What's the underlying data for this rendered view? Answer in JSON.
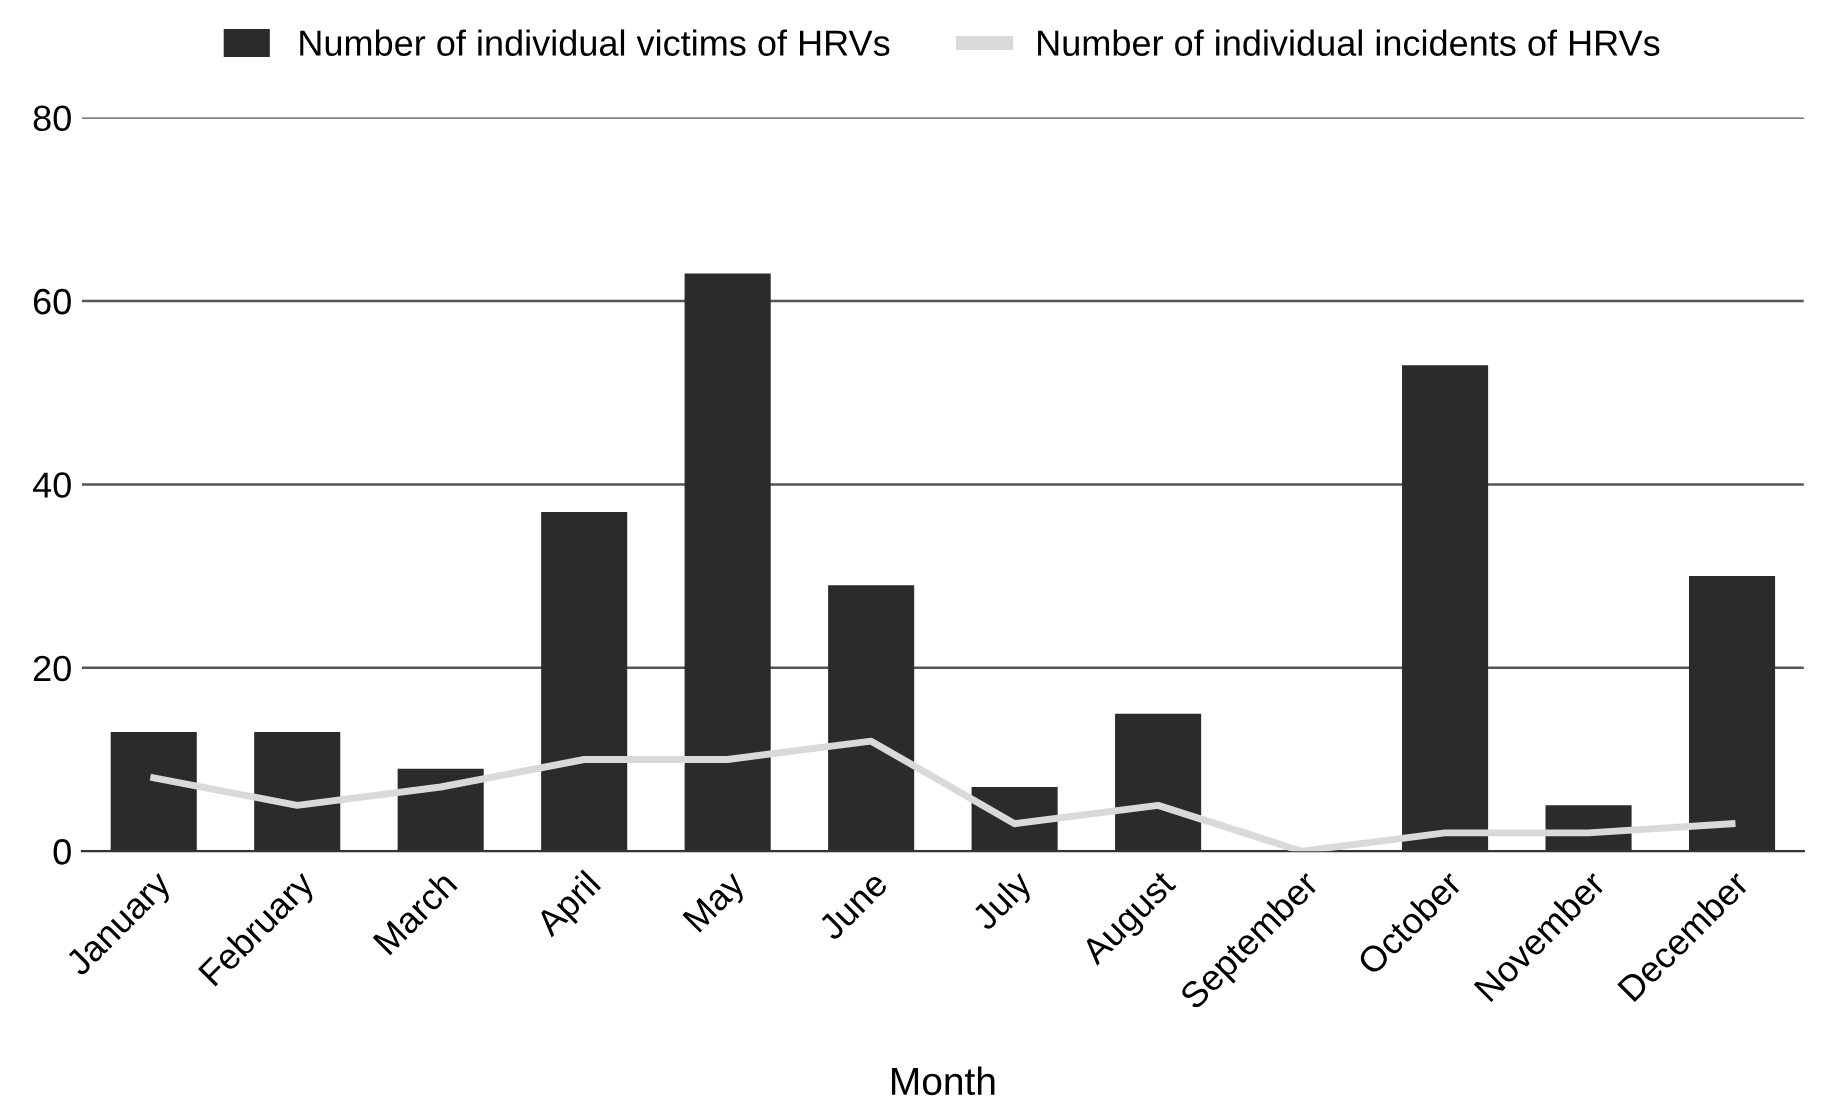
{
  "chart_data": {
    "type": "bar",
    "xlabel": "Month",
    "categories": [
      "January",
      "February",
      "March",
      "April",
      "May",
      "June",
      "July",
      "August",
      "September",
      "October",
      "November",
      "December"
    ],
    "series": [
      {
        "name": "Number of individual victims of HRVs",
        "color": "#2b2b2b",
        "values": [
          13,
          13,
          9,
          37,
          63,
          29,
          7,
          15,
          0,
          53,
          5,
          30
        ]
      },
      {
        "name": "Number of individual incidents of HRVs",
        "color": "#d9d9d9",
        "type": "line",
        "values": [
          8,
          5,
          7,
          10,
          10,
          12,
          3,
          5,
          0,
          2,
          2,
          3
        ]
      }
    ],
    "ylim": [
      0,
      80
    ],
    "yticks": [
      0,
      20,
      40,
      60,
      80
    ],
    "grid": "y",
    "legend": "top"
  }
}
